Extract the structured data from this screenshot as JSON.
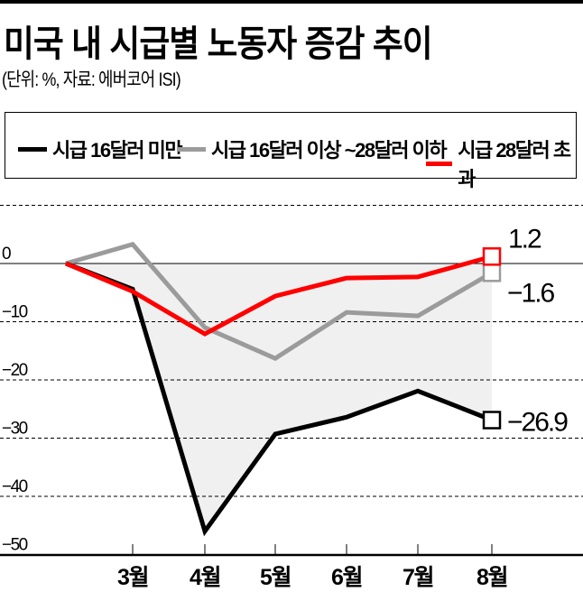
{
  "title": "미국 내 시급별 노동자 증감 추이",
  "subtitle": "(단위: %, 자료: 에버코어 ISI)",
  "colors": {
    "black": "#000000",
    "gray": "#9b9b9b",
    "red": "#ff0000",
    "fill": "#f0f0f0"
  },
  "chart_data": {
    "type": "line",
    "title": "미국 내 시급별 노동자 증감 추이",
    "unit": "%",
    "source": "에버코어 ISI",
    "categories": [
      "",
      "3월",
      "4월",
      "5월",
      "6월",
      "7월",
      "8월"
    ],
    "ylim": [
      -50,
      10
    ],
    "yticks": [
      0,
      -10,
      -20,
      -30,
      -40,
      -50
    ],
    "ytick_labels": [
      "0",
      "−10",
      "−20",
      "−30",
      "−40",
      "−50"
    ],
    "grid": true,
    "legend_position": "top",
    "series": [
      {
        "name": "시급 16달러 미만",
        "color": "#000000",
        "values": [
          0,
          -4.4,
          -46,
          -29.3,
          -26.4,
          -21.9,
          -26.9
        ],
        "end_label": "−26.9"
      },
      {
        "name": "시급 16달러 이상 ~28달러 이하",
        "color": "#9b9b9b",
        "values": [
          0,
          3.3,
          -11,
          -16.3,
          -8.4,
          -9,
          -1.6
        ],
        "end_label": "−1.6"
      },
      {
        "name": "시급 28달러 초과",
        "color": "#ff0000",
        "values": [
          0,
          -4.8,
          -12.1,
          -5.6,
          -2.5,
          -2.3,
          1.2
        ],
        "end_label": "1.2"
      }
    ]
  }
}
